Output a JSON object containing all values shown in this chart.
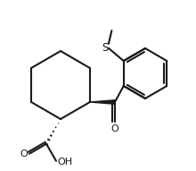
{
  "bg_color": "#ffffff",
  "line_color": "#1a1a1a",
  "lw": 1.5,
  "figsize": [
    2.2,
    1.91
  ],
  "dpi": 100,
  "S_label": "S",
  "O_label": "O",
  "OH_label": "OH"
}
